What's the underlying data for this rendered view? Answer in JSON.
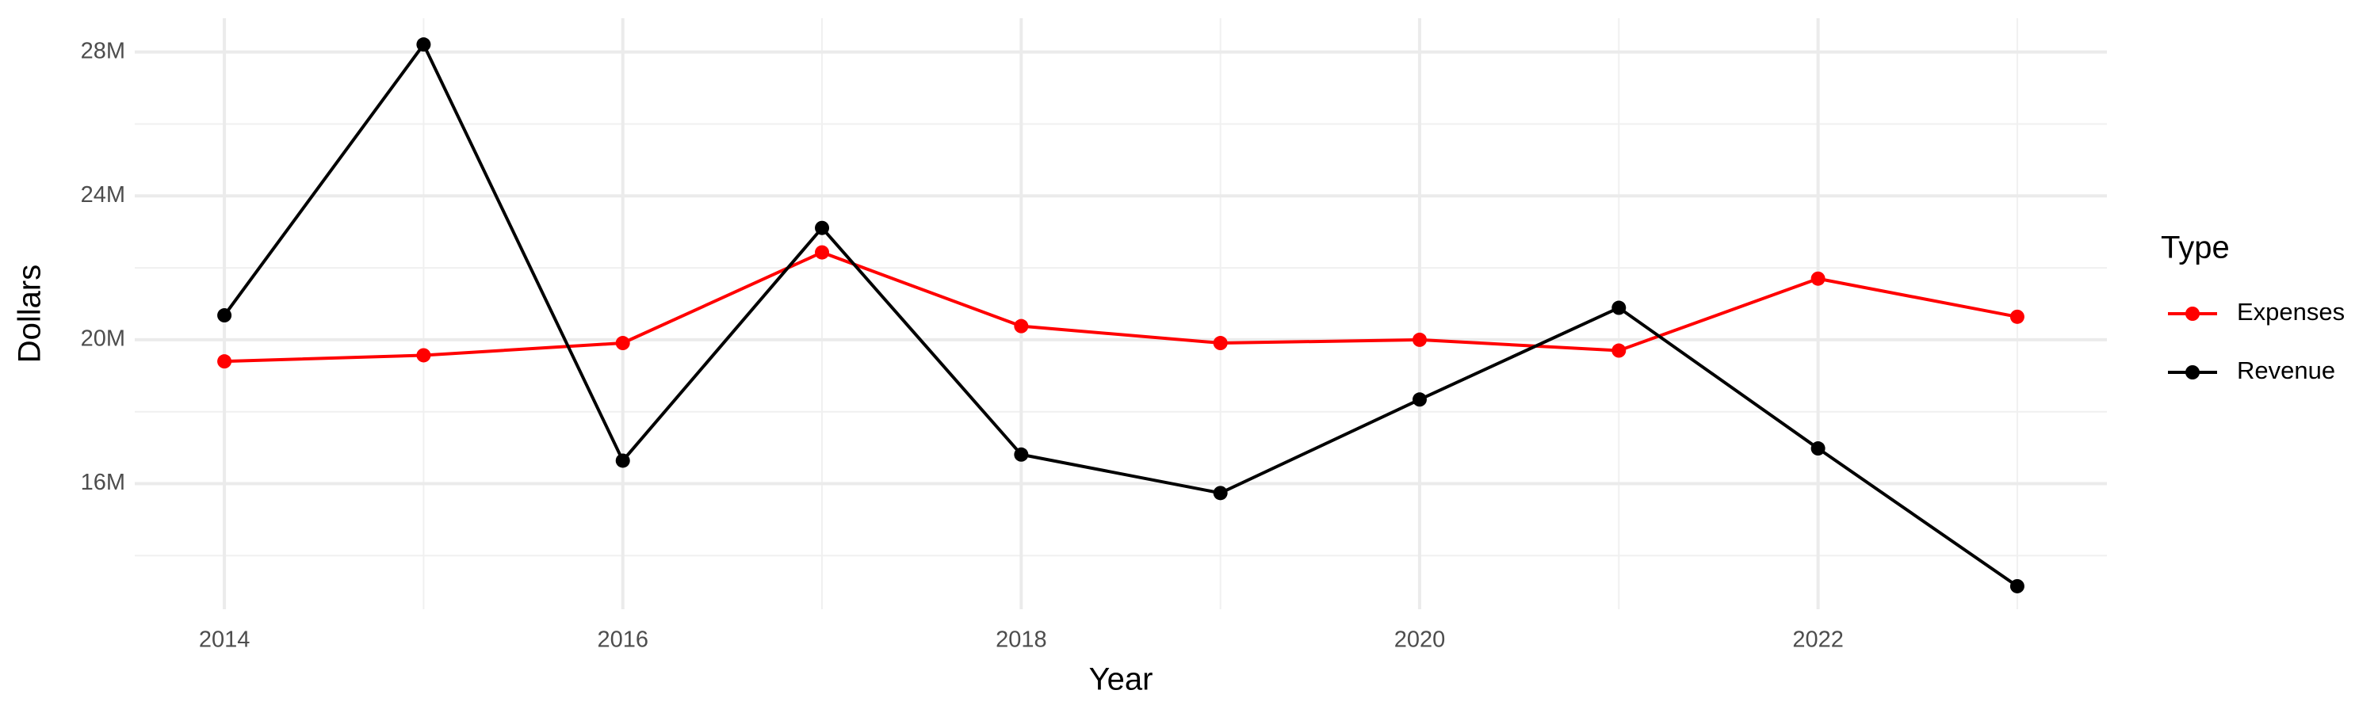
{
  "chart_data": {
    "type": "line",
    "x_label": "Year",
    "y_label": "Dollars",
    "x": [
      2014,
      2015,
      2016,
      2017,
      2018,
      2019,
      2020,
      2021,
      2022,
      2023
    ],
    "series": [
      {
        "name": "Expenses",
        "color": "#ff0000",
        "values": [
          19400000,
          19570000,
          19910000,
          22430000,
          20380000,
          19910000,
          20000000,
          19700000,
          21700000,
          20640000
        ]
      },
      {
        "name": "Revenue",
        "color": "#000000",
        "values": [
          20680000,
          28210000,
          16640000,
          23110000,
          16810000,
          15740000,
          18340000,
          20890000,
          16980000,
          13150000
        ]
      }
    ],
    "legend_title": "Type",
    "legend_position": "right",
    "xlim": [
      2013.55,
      2023.45
    ],
    "xticks": [
      2014,
      2016,
      2018,
      2020,
      2022
    ],
    "xminorticks": [
      2015,
      2017,
      2019,
      2021,
      2023
    ],
    "ylim": [
      12510000,
      28940000
    ],
    "yticks": [
      {
        "value": 16000000,
        "label": "16M"
      },
      {
        "value": 20000000,
        "label": "20M"
      },
      {
        "value": 24000000,
        "label": "24M"
      },
      {
        "value": 28000000,
        "label": "28M"
      }
    ],
    "yminorticks": [
      14000000,
      18000000,
      22000000,
      26000000
    ],
    "grid": true
  }
}
